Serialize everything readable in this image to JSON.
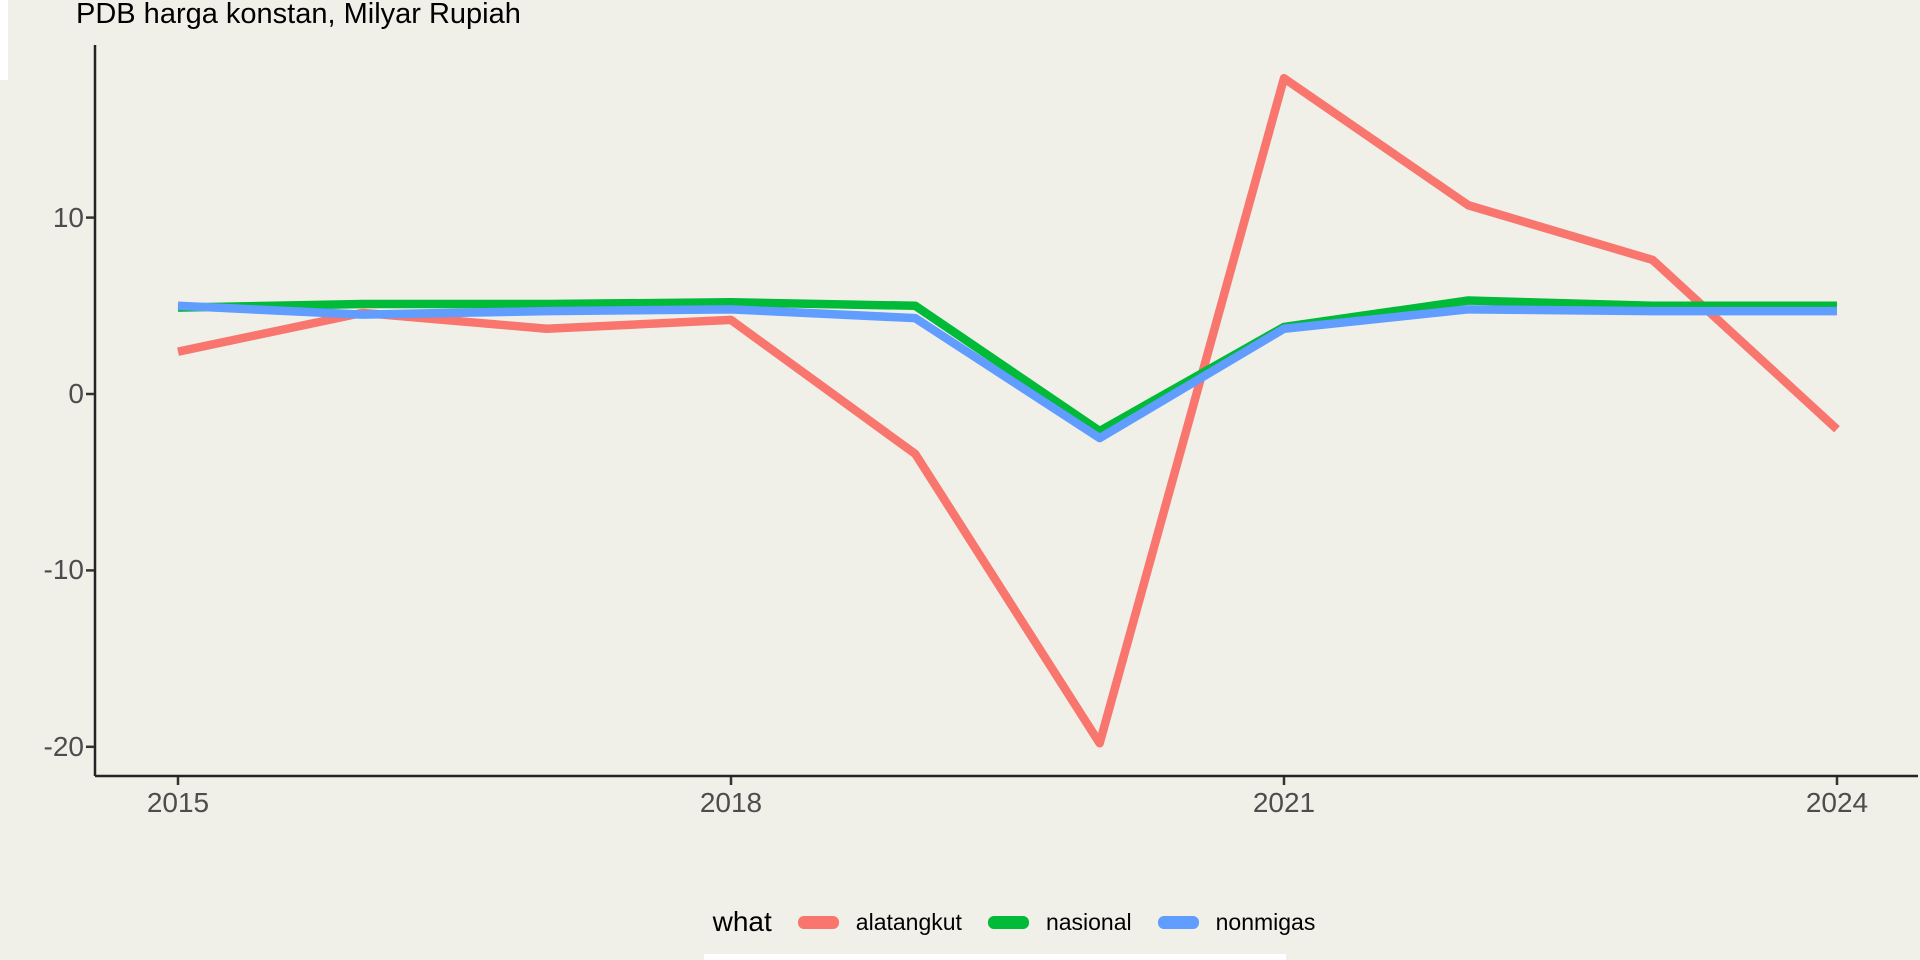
{
  "title": "PDB harga konstan, Milyar Rupiah",
  "chart_data": {
    "type": "line",
    "title": "PDB harga konstan, Milyar Rupiah",
    "xlabel": "",
    "ylabel": "",
    "x_years": [
      2015,
      2016,
      2017,
      2018,
      2019,
      2020,
      2021,
      2022,
      2023,
      2024
    ],
    "series": [
      {
        "name": "alatangkut",
        "color": "#F8766D",
        "values": [
          2.4,
          4.6,
          3.7,
          4.2,
          -3.4,
          -19.8,
          17.9,
          10.7,
          7.6,
          -2.0
        ]
      },
      {
        "name": "nasional",
        "color": "#00BA38",
        "values": [
          4.9,
          5.1,
          5.1,
          5.2,
          5.0,
          -2.1,
          3.8,
          5.3,
          5.0,
          5.0
        ]
      },
      {
        "name": "nonmigas",
        "color": "#619CFF",
        "values": [
          5.0,
          4.5,
          4.7,
          4.8,
          4.3,
          -2.5,
          3.7,
          4.8,
          4.7,
          4.7
        ]
      }
    ],
    "xticks": [
      "2015",
      "2018",
      "2021",
      "2024"
    ],
    "yticks": [
      "10",
      "0",
      "-10",
      "-20"
    ],
    "xlim": [
      2014.55,
      2024.45
    ],
    "ylim": [
      -21.6,
      19.8
    ],
    "grid": false,
    "panel_background": "#F0F0E9",
    "axis_text_color": "#4d4d4d",
    "legend": {
      "title": "what",
      "position": "bottom"
    }
  }
}
